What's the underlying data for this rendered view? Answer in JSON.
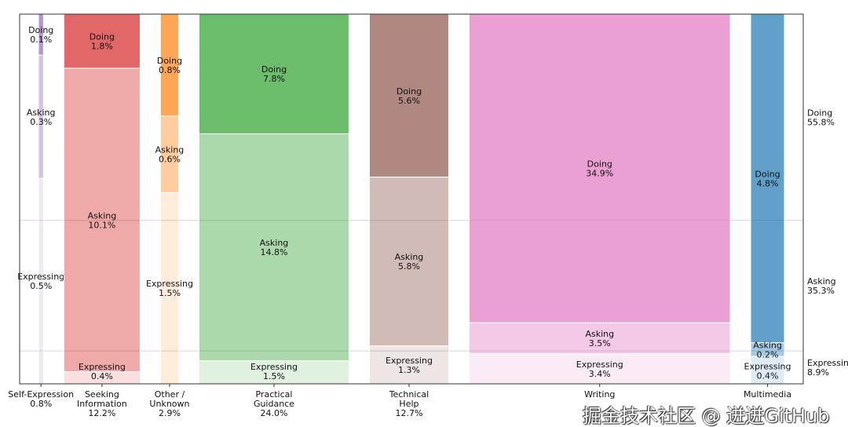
{
  "chart_data": {
    "type": "mosaic",
    "title": "",
    "grid": false,
    "segment_order": [
      "Doing",
      "Asking",
      "Expressing"
    ],
    "alpha": {
      "Doing": 0.7,
      "Asking": 0.4,
      "Expressing": 0.15
    },
    "categories": [
      {
        "name": "Self-Expression",
        "label_lines": [
          "Self-Expression",
          "0.8%"
        ],
        "share": 0.8,
        "color": "#9467bd",
        "segments": [
          {
            "name": "Doing",
            "value": 0.1
          },
          {
            "name": "Asking",
            "value": 0.3
          },
          {
            "name": "Expressing",
            "value": 0.5
          }
        ]
      },
      {
        "name": "Seeking Information",
        "label_lines": [
          "Seeking",
          "Information",
          "12.2%"
        ],
        "share": 12.2,
        "color": "#d62728",
        "segments": [
          {
            "name": "Doing",
            "value": 1.8
          },
          {
            "name": "Asking",
            "value": 10.1
          },
          {
            "name": "Expressing",
            "value": 0.4
          }
        ]
      },
      {
        "name": "Other / Unknown",
        "label_lines": [
          "Other /",
          "Unknown",
          "2.9%"
        ],
        "share": 2.9,
        "color": "#ff7f0e",
        "segments": [
          {
            "name": "Doing",
            "value": 0.8
          },
          {
            "name": "Asking",
            "value": 0.6
          },
          {
            "name": "Expressing",
            "value": 1.5
          }
        ]
      },
      {
        "name": "Practical Guidance",
        "label_lines": [
          "Practical",
          "Guidance",
          "24.0%"
        ],
        "share": 24.0,
        "color": "#2ca02c",
        "segments": [
          {
            "name": "Doing",
            "value": 7.8
          },
          {
            "name": "Asking",
            "value": 14.8
          },
          {
            "name": "Expressing",
            "value": 1.5
          }
        ]
      },
      {
        "name": "Technical Help",
        "label_lines": [
          "Technical",
          "Help",
          "12.7%"
        ],
        "share": 12.7,
        "color": "#8c564b",
        "segments": [
          {
            "name": "Doing",
            "value": 5.6
          },
          {
            "name": "Asking",
            "value": 5.8
          },
          {
            "name": "Expressing",
            "value": 1.3
          }
        ]
      },
      {
        "name": "Writing",
        "label_lines": [
          "Writing"
        ],
        "share": 41.8,
        "color": "#e377c2",
        "segments": [
          {
            "name": "Doing",
            "value": 34.9
          },
          {
            "name": "Asking",
            "value": 3.5
          },
          {
            "name": "Expressing",
            "value": 3.4
          }
        ]
      },
      {
        "name": "Multimedia",
        "label_lines": [
          "Multimedia"
        ],
        "share": 5.4,
        "color": "#1f77b4",
        "segments": [
          {
            "name": "Doing",
            "value": 4.8
          },
          {
            "name": "Asking",
            "value": 0.2
          },
          {
            "name": "Expressing",
            "value": 0.4
          }
        ]
      }
    ],
    "totals": [
      {
        "name": "Doing",
        "value": 55.8,
        "label": "Doing",
        "pct": "55.8%"
      },
      {
        "name": "Asking",
        "value": 35.3,
        "label": "Asking",
        "pct": "35.3%"
      },
      {
        "name": "Expressing",
        "value": 8.9,
        "label": "Expressing",
        "pct": "8.9%"
      }
    ]
  },
  "watermark": "掘金技术社区 @ 迸迸GitHub"
}
